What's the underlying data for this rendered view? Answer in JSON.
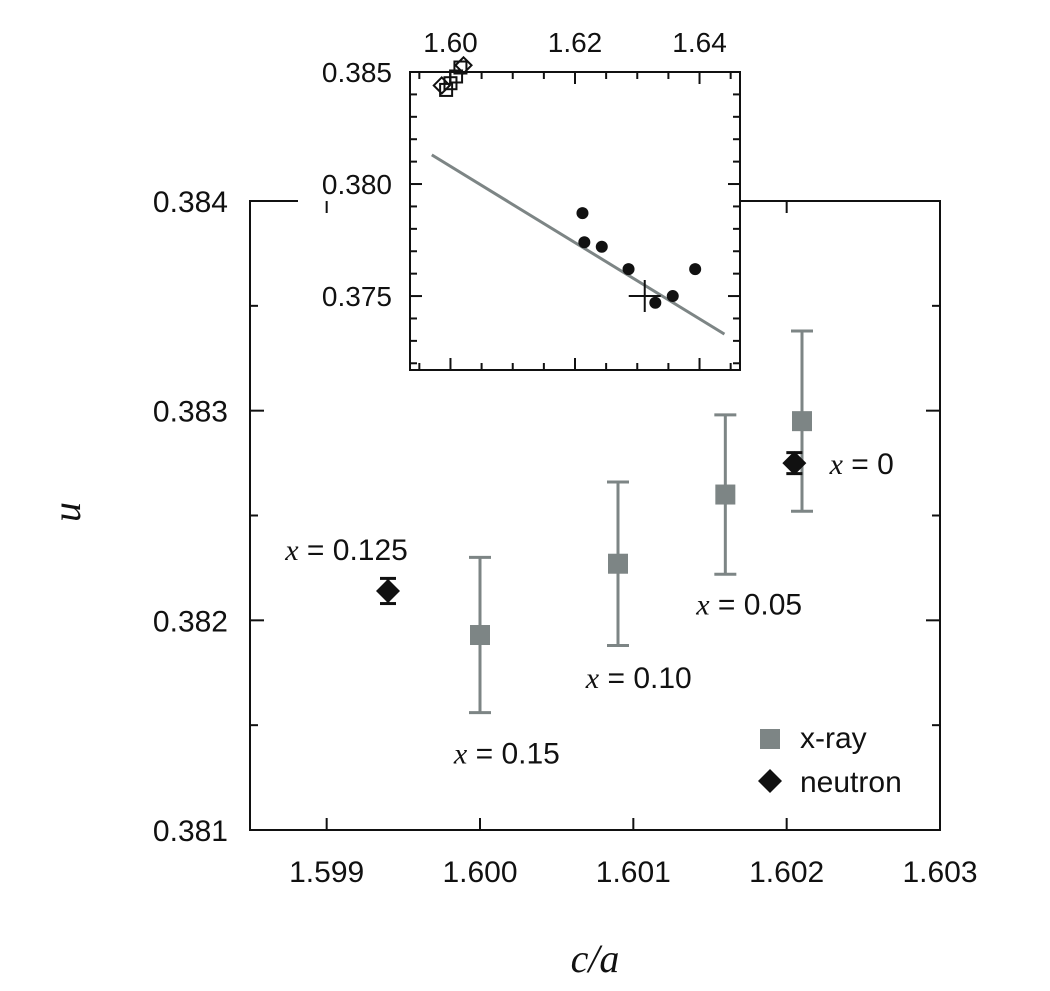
{
  "chart_data": [
    {
      "type": "scatter",
      "xlabel": "c/a",
      "ylabel": "u",
      "xlim": [
        1.5985,
        1.603
      ],
      "ylim": [
        0.381,
        0.384
      ],
      "x_ticks": [
        1.599,
        1.6,
        1.601,
        1.602,
        1.603
      ],
      "x_tick_labels": [
        "1.599",
        "1.600",
        "1.601",
        "1.602",
        "1.603"
      ],
      "y_ticks": [
        0.381,
        0.382,
        0.383,
        0.384
      ],
      "y_tick_labels": [
        "0.381",
        "0.382",
        "0.383",
        "0.384"
      ],
      "grid": false,
      "legend_position": "bottom-right",
      "series": [
        {
          "name": "x-ray",
          "color": "#7d8585",
          "marker": "square",
          "points": [
            {
              "x": 1.6,
              "y": 0.38193,
              "err": 0.00037
            },
            {
              "x": 1.6009,
              "y": 0.38227,
              "err": 0.00039
            },
            {
              "x": 1.6016,
              "y": 0.3826,
              "err": 0.00038
            },
            {
              "x": 1.6021,
              "y": 0.38295,
              "err": 0.00043
            }
          ]
        },
        {
          "name": "neutron",
          "color": "#111111",
          "marker": "diamond",
          "points": [
            {
              "x": 1.5994,
              "y": 0.38214,
              "err": 6e-05
            },
            {
              "x": 1.60205,
              "y": 0.38275,
              "err": 5e-05
            }
          ]
        }
      ],
      "annotations": [
        {
          "var": "x",
          "rest": " = 0",
          "x": 1.60228,
          "y": 0.38275
        },
        {
          "var": "x",
          "rest": " = 0.05",
          "x": 1.60141,
          "y": 0.38208
        },
        {
          "var": "x",
          "rest": " = 0.10",
          "x": 1.60069,
          "y": 0.38173
        },
        {
          "var": "x",
          "rest": " = 0.15",
          "x": 1.59983,
          "y": 0.38137
        },
        {
          "var": "x",
          "rest": " = 0.125",
          "x": 1.59873,
          "y": 0.38234
        }
      ]
    },
    {
      "type": "scatter",
      "xlim": [
        1.5935,
        1.6465
      ],
      "ylim": [
        0.3717,
        0.385
      ],
      "x_ticks": [
        1.6,
        1.62,
        1.64
      ],
      "x_tick_labels": [
        "1.60",
        "1.62",
        "1.64"
      ],
      "y_ticks": [
        0.375,
        0.38,
        0.385
      ],
      "y_tick_labels": [
        "0.375",
        "0.380",
        "0.385"
      ],
      "grid": false,
      "series": [
        {
          "marker": "filled-circle",
          "color": "#111111",
          "points": [
            {
              "x": 1.6212,
              "y": 0.3787
            },
            {
              "x": 1.6215,
              "y": 0.3774
            },
            {
              "x": 1.6243,
              "y": 0.3772
            },
            {
              "x": 1.6286,
              "y": 0.3762
            },
            {
              "x": 1.6329,
              "y": 0.3747
            },
            {
              "x": 1.6357,
              "y": 0.375
            },
            {
              "x": 1.6393,
              "y": 0.3762
            }
          ]
        },
        {
          "marker": "open-square",
          "color": "#111111",
          "points": [
            {
              "x": 1.5993,
              "y": 0.3842
            },
            {
              "x": 1.6,
              "y": 0.3845
            },
            {
              "x": 1.6009,
              "y": 0.3848
            },
            {
              "x": 1.6016,
              "y": 0.3852
            }
          ]
        },
        {
          "marker": "open-diamond",
          "color": "#111111",
          "points": [
            {
              "x": 1.5986,
              "y": 0.3844
            },
            {
              "x": 1.6021,
              "y": 0.3853
            }
          ]
        },
        {
          "marker": "plus",
          "color": "#111111",
          "points": [
            {
              "x": 1.6312,
              "y": 0.375
            }
          ]
        }
      ],
      "fit_line": {
        "color": "#7d8585",
        "x": [
          1.597,
          1.644
        ],
        "y": [
          0.3813,
          0.3733
        ]
      }
    }
  ]
}
